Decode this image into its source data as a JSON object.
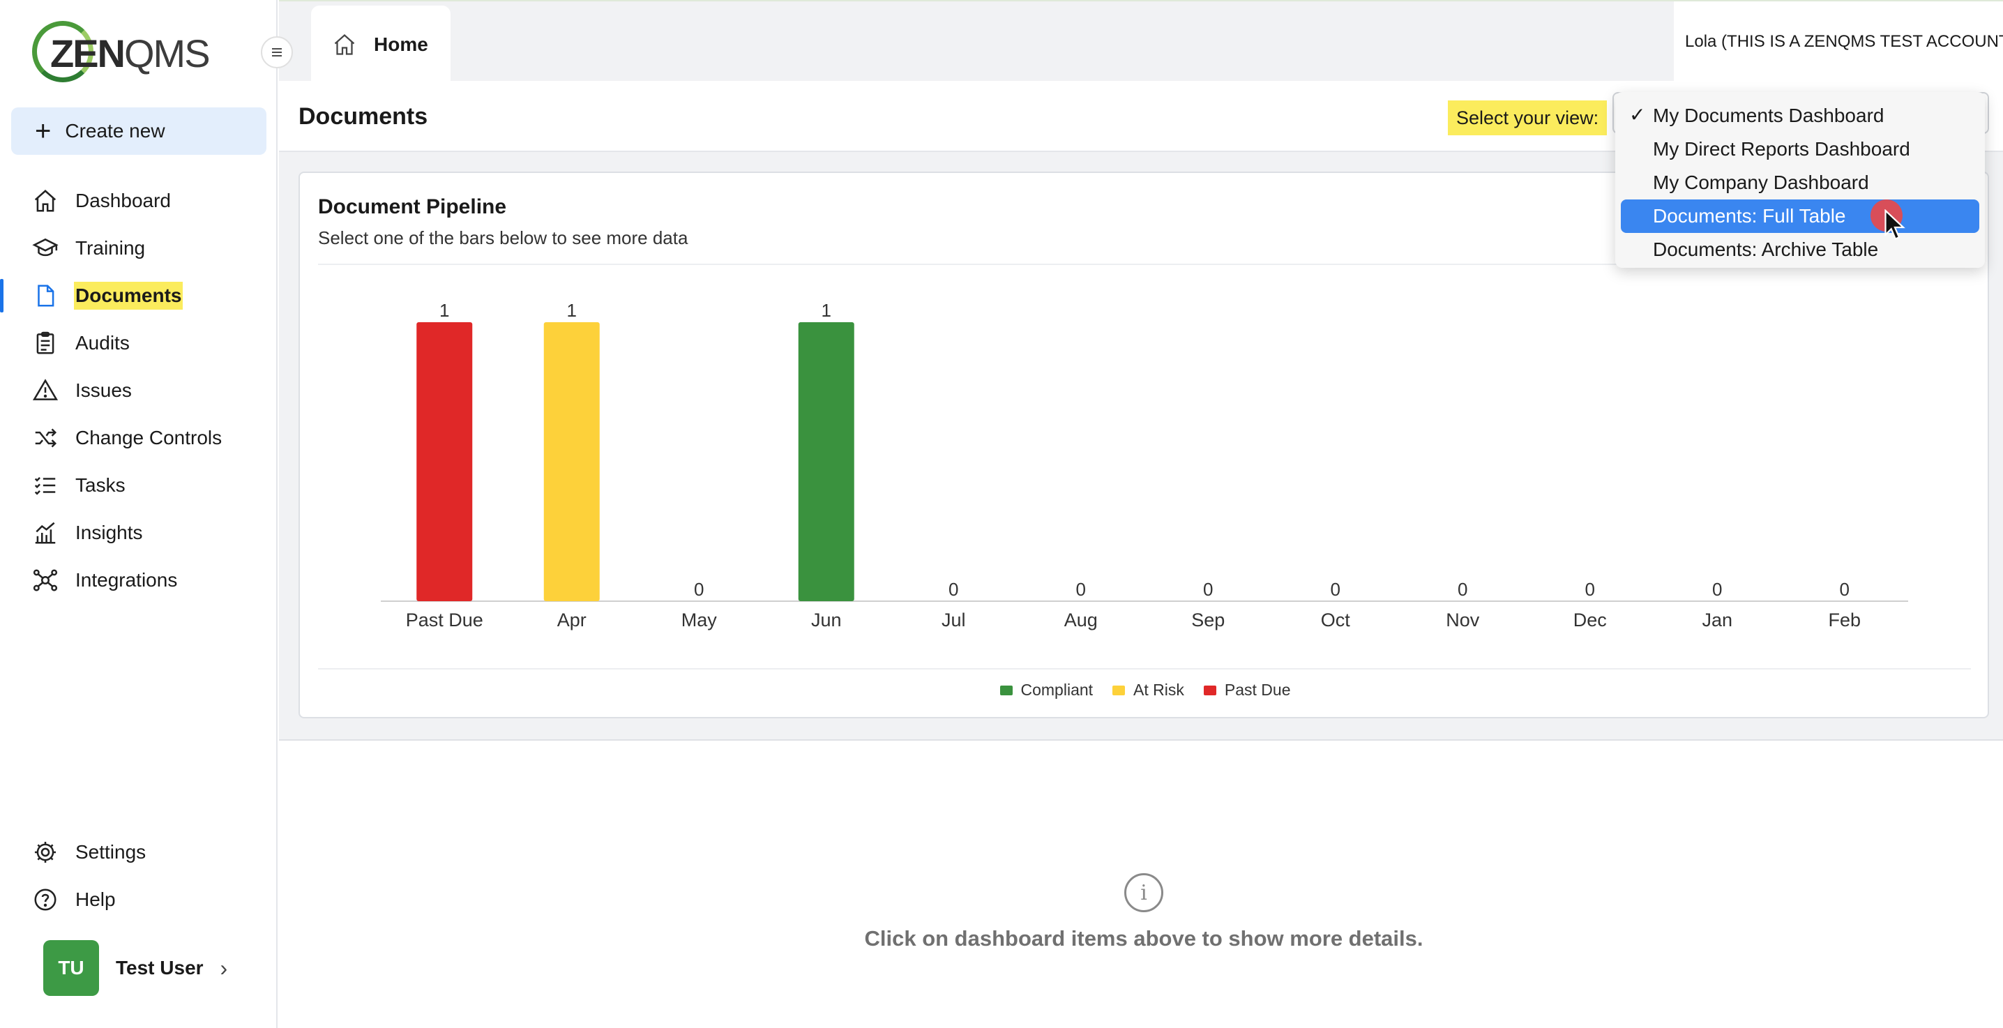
{
  "app": {
    "logo_main": "ZEN",
    "logo_thin": "QMS"
  },
  "sidebar": {
    "create_label": "Create new",
    "items": [
      {
        "label": "Dashboard",
        "icon": "home-icon"
      },
      {
        "label": "Training",
        "icon": "graduation-cap-icon"
      },
      {
        "label": "Documents",
        "icon": "document-icon"
      },
      {
        "label": "Audits",
        "icon": "clipboard-icon"
      },
      {
        "label": "Issues",
        "icon": "warning-icon"
      },
      {
        "label": "Change Controls",
        "icon": "shuffle-icon"
      },
      {
        "label": "Tasks",
        "icon": "checklist-icon"
      },
      {
        "label": "Insights",
        "icon": "chart-icon"
      },
      {
        "label": "Integrations",
        "icon": "network-icon"
      }
    ],
    "active": "Documents",
    "bottom_items": [
      {
        "label": "Settings",
        "icon": "gear-icon"
      },
      {
        "label": "Help",
        "icon": "help-icon"
      }
    ],
    "user": {
      "initials": "TU",
      "name": "Test User"
    }
  },
  "topbar": {
    "tab_label": "Home",
    "account": "Lola (THIS IS A ZENQMS TEST ACCOUNT)"
  },
  "page": {
    "title": "Documents",
    "view_label": "Select your view:"
  },
  "view_menu": {
    "options": [
      "My Documents Dashboard",
      "My Direct Reports Dashboard",
      "My Company Dashboard",
      "Documents: Full Table",
      "Documents: Archive Table"
    ],
    "checked": "My Documents Dashboard",
    "highlighted": "Documents: Full Table"
  },
  "card": {
    "title": "Document Pipeline",
    "subtitle": "Select one of the bars below to see more data"
  },
  "chart_data": {
    "type": "bar",
    "categories": [
      "Past Due",
      "Apr",
      "May",
      "Jun",
      "Jul",
      "Aug",
      "Sep",
      "Oct",
      "Nov",
      "Dec",
      "Jan",
      "Feb"
    ],
    "values": [
      1,
      1,
      0,
      1,
      0,
      0,
      0,
      0,
      0,
      0,
      0,
      0
    ],
    "bar_status": [
      "Past Due",
      "At Risk",
      "",
      "Compliant",
      "",
      "",
      "",
      "",
      "",
      "",
      "",
      ""
    ],
    "legend": [
      {
        "name": "Compliant",
        "color": "#3a923e"
      },
      {
        "name": "At Risk",
        "color": "#fdd13a"
      },
      {
        "name": "Past Due",
        "color": "#e02828"
      }
    ],
    "ylim": [
      0,
      1
    ],
    "grid": false,
    "legend_position": "bottom"
  },
  "empty_state": {
    "text": "Click on dashboard items above to show more details."
  }
}
